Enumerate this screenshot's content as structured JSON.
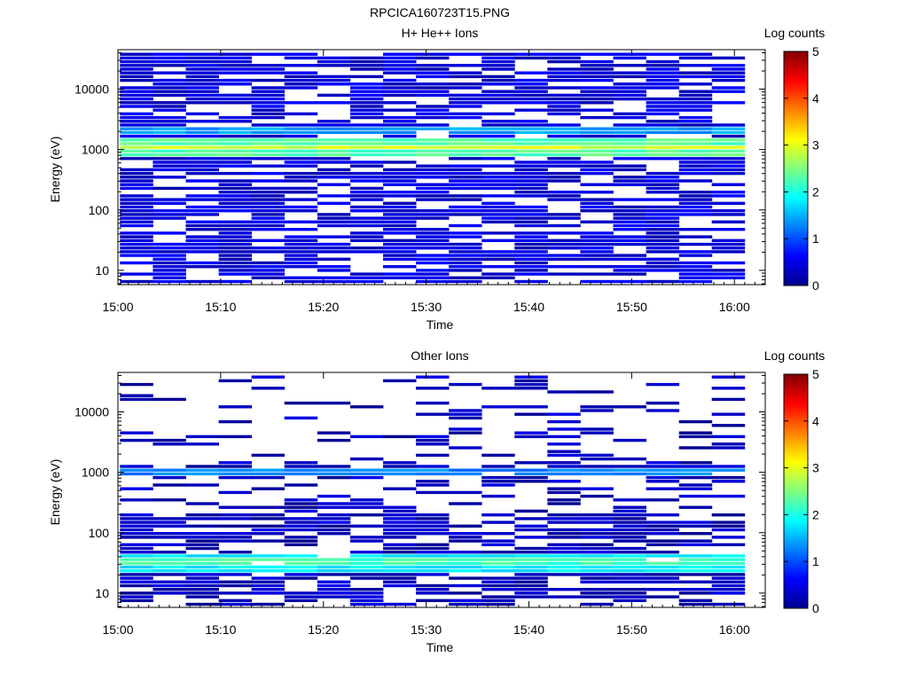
{
  "figure_title": "RPCICA160723T15.PNG",
  "chart_data": [
    {
      "type": "heatmap",
      "title": "H+ He++ Ions",
      "xlabel": "Time",
      "ylabel": "Energy (eV)",
      "x_ticks": [
        "15:00",
        "15:10",
        "15:20",
        "15:30",
        "15:40",
        "15:50",
        "16:00"
      ],
      "y_ticks": [
        "10",
        "100",
        "1000",
        "10000"
      ],
      "y_scale": "log",
      "ylim": [
        5.8,
        45000
      ],
      "xlim_minutes": [
        0,
        63
      ],
      "time_bins_minutes": [
        0.2,
        3.4,
        6.6,
        9.8,
        13.0,
        16.2,
        19.4,
        22.6,
        25.8,
        29.0,
        32.2,
        35.4,
        38.6,
        41.8,
        45.0,
        48.2,
        51.4,
        54.6,
        57.8,
        61.0
      ],
      "colorbar": {
        "label": "Log counts",
        "range": [
          0,
          5
        ],
        "ticks": [
          "0",
          "1",
          "2",
          "3",
          "4",
          "5"
        ]
      },
      "energy_bands": [
        {
          "e_low": 6,
          "e_high": 40000,
          "level": 0.45
        },
        {
          "e_low": 1800,
          "e_high": 2400,
          "level": 1.4
        },
        {
          "e_low": 700,
          "e_high": 1500,
          "level": 2.3
        },
        {
          "e_low": 950,
          "e_high": 1150,
          "level": 2.9
        }
      ]
    },
    {
      "type": "heatmap",
      "title": "Other Ions",
      "xlabel": "Time",
      "ylabel": "Energy (eV)",
      "x_ticks": [
        "15:00",
        "15:10",
        "15:20",
        "15:30",
        "15:40",
        "15:50",
        "16:00"
      ],
      "y_ticks": [
        "10",
        "100",
        "1000",
        "10000"
      ],
      "y_scale": "log",
      "ylim": [
        5.8,
        45000
      ],
      "xlim_minutes": [
        0,
        63
      ],
      "time_bins_minutes": [
        0.2,
        3.4,
        6.6,
        9.8,
        13.0,
        16.2,
        19.4,
        22.6,
        25.8,
        29.0,
        32.2,
        35.4,
        38.6,
        41.8,
        45.0,
        48.2,
        51.4,
        54.6,
        57.8,
        61.0
      ],
      "colorbar": {
        "label": "Log counts",
        "range": [
          0,
          5
        ],
        "ticks": [
          "0",
          "1",
          "2",
          "3",
          "4",
          "5"
        ]
      },
      "energy_bands": [
        {
          "e_low": 6,
          "e_high": 40000,
          "level": 0.3
        },
        {
          "e_low": 900,
          "e_high": 1200,
          "level": 1.3
        },
        {
          "e_low": 22,
          "e_high": 45,
          "level": 1.8
        },
        {
          "e_low": 28,
          "e_high": 38,
          "level": 2.2
        }
      ]
    }
  ]
}
